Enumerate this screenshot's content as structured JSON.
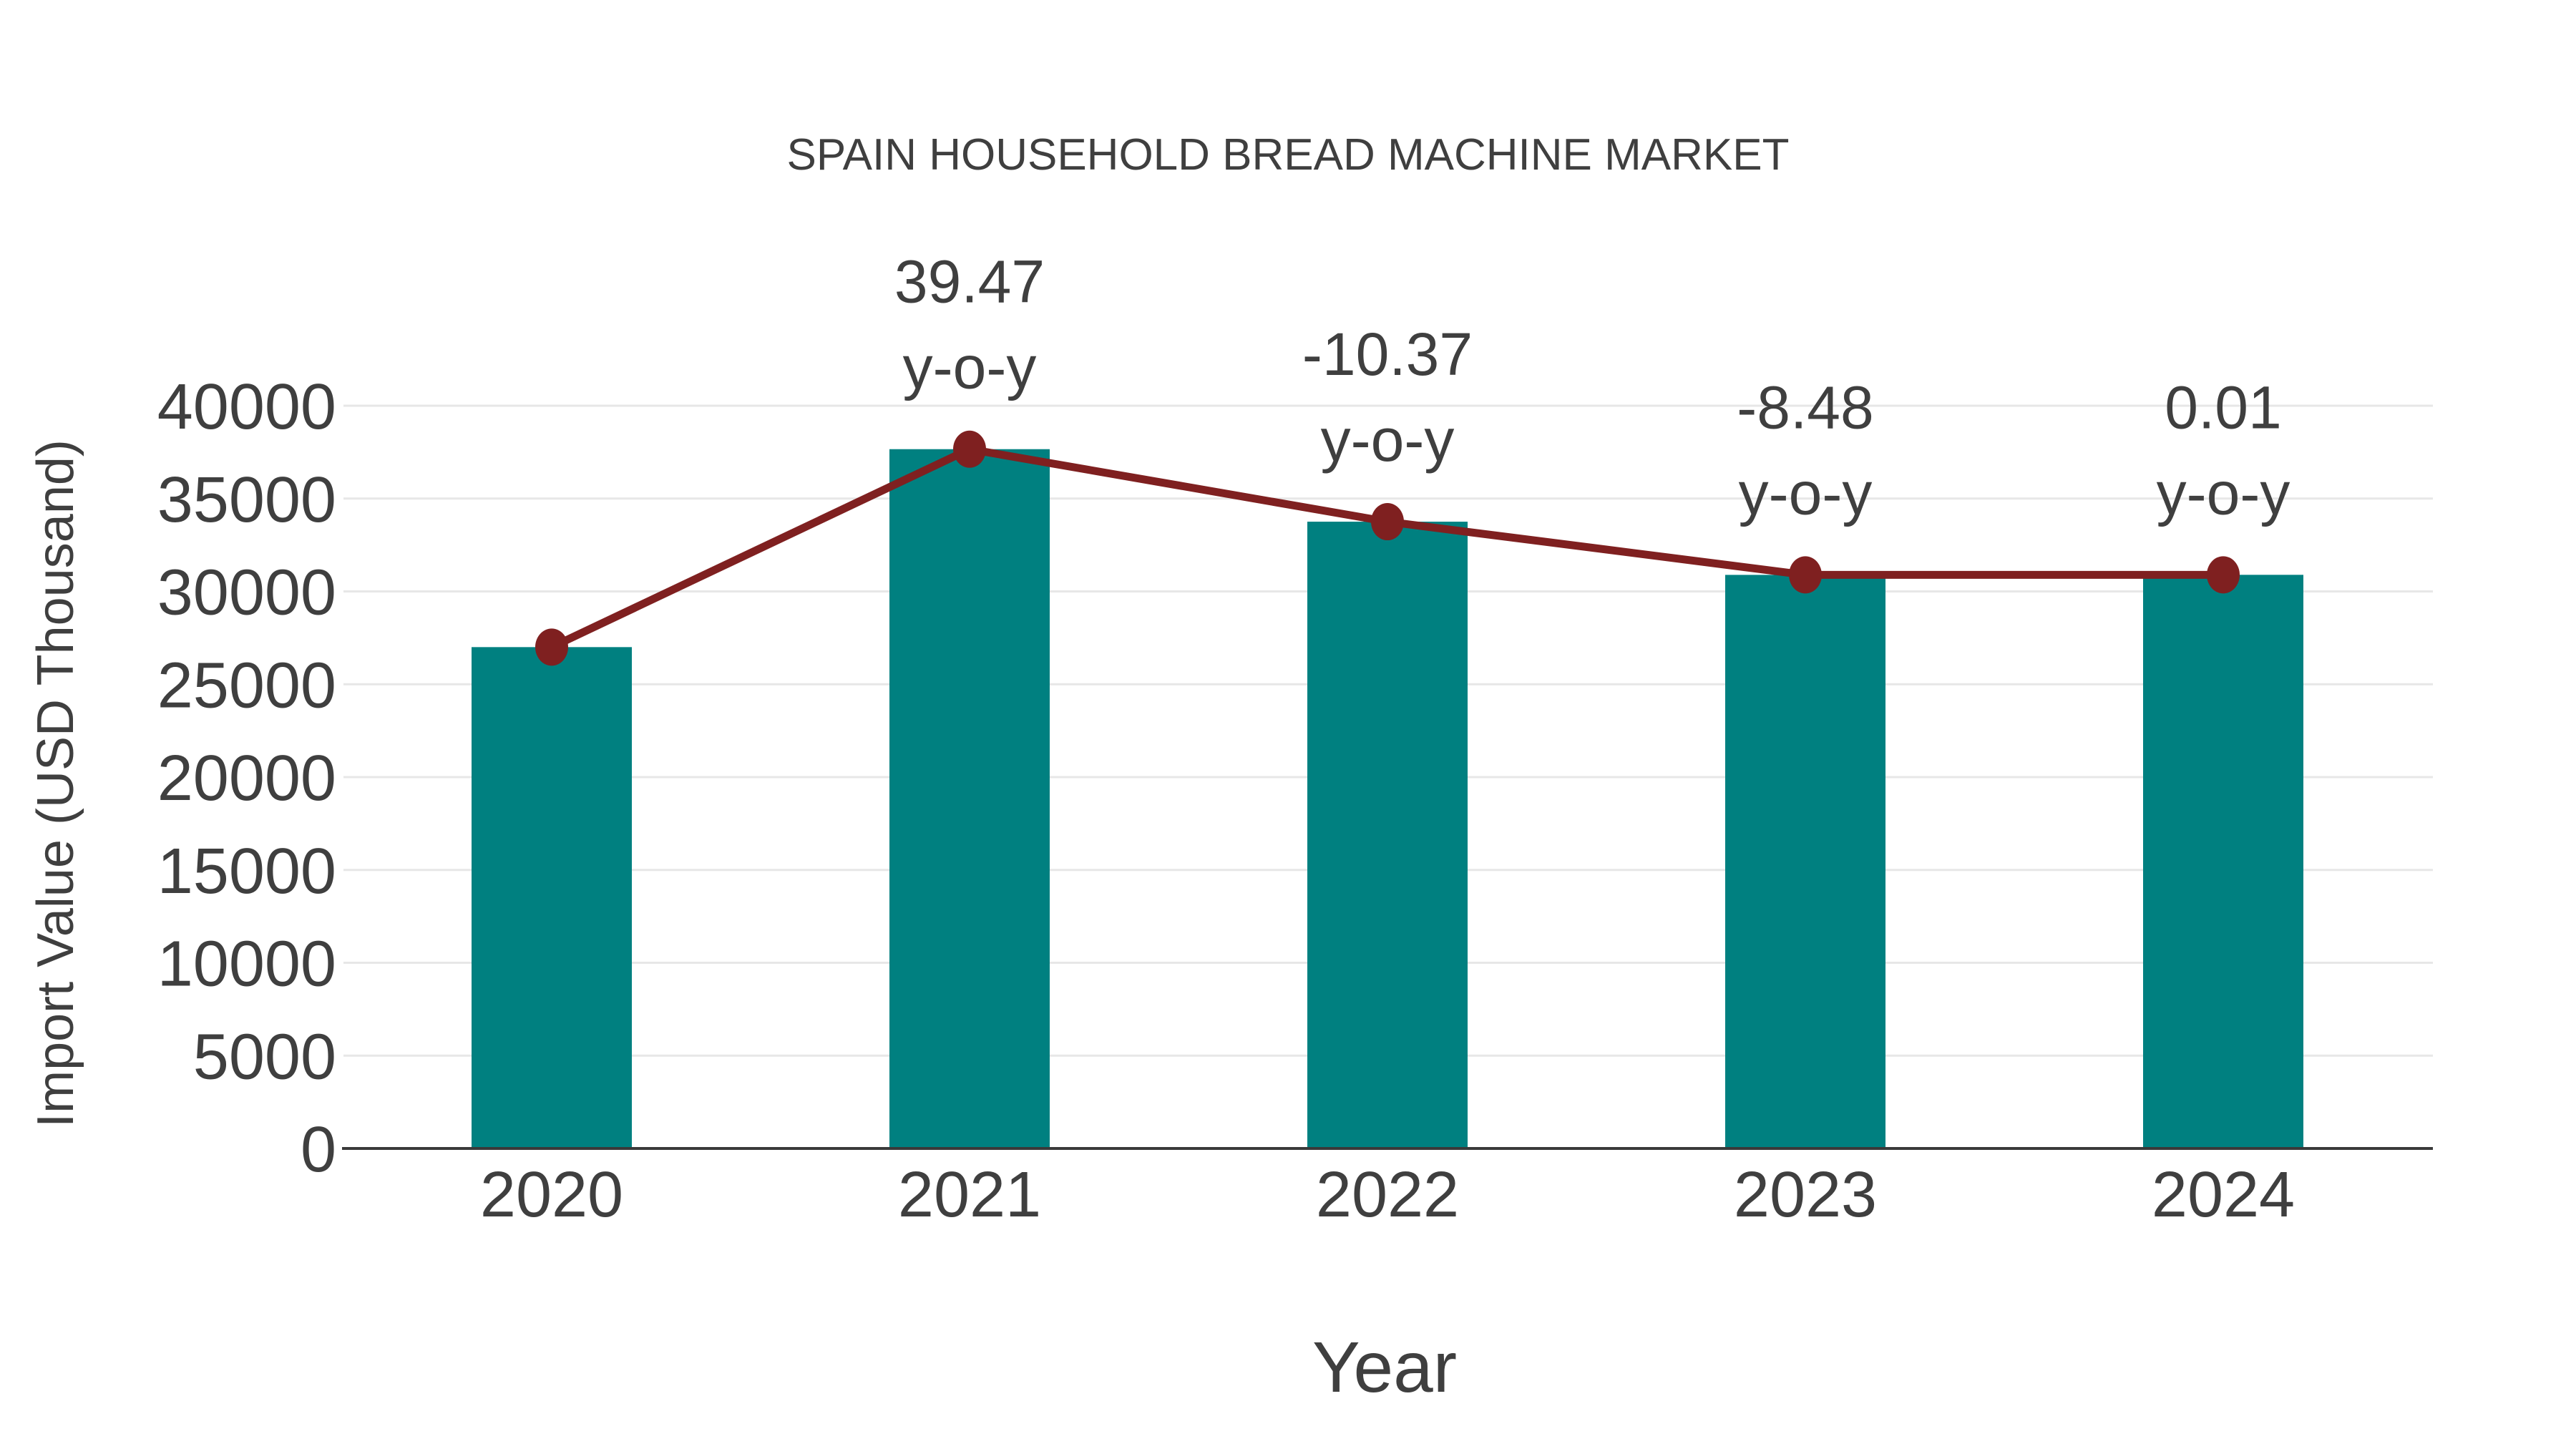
{
  "page": {
    "background": "#ffffff"
  },
  "chart_data": {
    "type": "bar",
    "title": "SPAIN HOUSEHOLD BREAD MACHINE MARKET",
    "xlabel": "Year",
    "ylabel": "Import Value (USD Thousand)",
    "categories": [
      "2020",
      "2021",
      "2022",
      "2023",
      "2024"
    ],
    "series": [
      {
        "name": "Import Value (USD Thousand)",
        "type": "bar",
        "color": "#008080",
        "values": [
          27000,
          37660,
          33755,
          30890,
          30893
        ]
      },
      {
        "name": "y-o-y change marker line",
        "type": "line",
        "color": "#7f2020",
        "values": [
          27000,
          37660,
          33755,
          30890,
          30893
        ]
      }
    ],
    "annotations": [
      {
        "category": "2021",
        "value_text": "39.47",
        "suffix": "y-o-y"
      },
      {
        "category": "2022",
        "value_text": "-10.37",
        "suffix": "y-o-y"
      },
      {
        "category": "2023",
        "value_text": "-8.48",
        "suffix": "y-o-y"
      },
      {
        "category": "2024",
        "value_text": "0.01",
        "suffix": "y-o-y"
      }
    ],
    "yticks": [
      0,
      5000,
      10000,
      15000,
      20000,
      25000,
      30000,
      35000,
      40000
    ],
    "ylim": [
      0,
      40000
    ],
    "grid": true,
    "legend": false,
    "colors": {
      "bar": "#008080",
      "line": "#7f2020",
      "text": "#3f3f3f",
      "grid": "#e7e7e7",
      "axis": "#3a3a3a"
    }
  }
}
